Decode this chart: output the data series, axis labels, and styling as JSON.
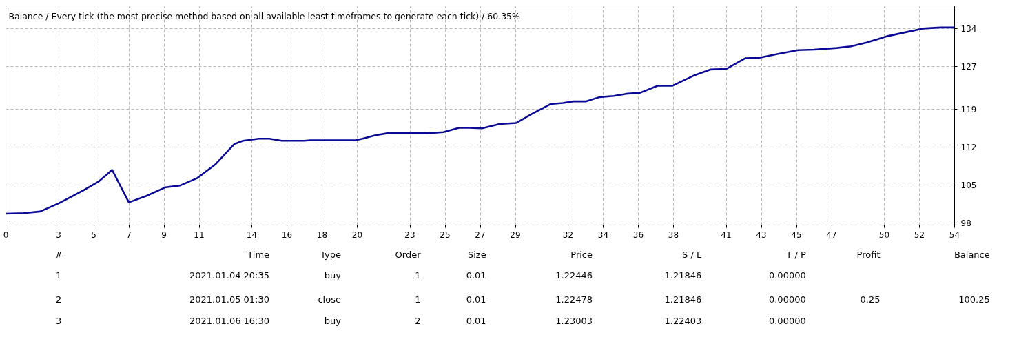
{
  "chart_data": {
    "type": "line",
    "title": "Balance / Every tick (the most precise method based on all available least timeframes to generate each tick) / 60.35%",
    "x": [
      0,
      1.0,
      1.95,
      3.0,
      4.4,
      5.3,
      6.05,
      7.0,
      8.0,
      9.1,
      9.9,
      10.9,
      11.95,
      13.0,
      13.5,
      14.4,
      15.0,
      15.7,
      17.0,
      17.3,
      19.9,
      20.3,
      21.0,
      21.7,
      24.0,
      24.9,
      25.8,
      26.4,
      27.1,
      28.1,
      29.05,
      29.9,
      31.0,
      31.7,
      32.3,
      33.0,
      33.8,
      34.6,
      35.3,
      36.1,
      37.1,
      37.95,
      39.1,
      40.1,
      41.0,
      42.1,
      42.9,
      43.95,
      45.1,
      46.0,
      47.3,
      48.1,
      49.0,
      50.2,
      51.2,
      52.2,
      53.2,
      54
    ],
    "series": [
      {
        "color": "#0a0a96",
        "values": [
          99.7,
          99.8,
          100.1,
          101.6,
          104.0,
          105.7,
          107.8,
          101.8,
          103.0,
          104.6,
          104.9,
          106.3,
          108.9,
          112.6,
          113.2,
          113.6,
          113.6,
          113.2,
          113.2,
          113.3,
          113.3,
          113.6,
          114.2,
          114.6,
          114.6,
          114.8,
          115.6,
          115.6,
          115.5,
          116.3,
          116.5,
          118.1,
          120.0,
          120.2,
          120.5,
          120.5,
          121.3,
          121.5,
          121.9,
          122.1,
          123.4,
          123.4,
          125.2,
          126.4,
          126.5,
          128.5,
          128.6,
          129.3,
          130.0,
          130.1,
          130.4,
          130.7,
          131.4,
          132.6,
          133.3,
          134.0,
          134.2,
          134.2
        ]
      }
    ],
    "xlim": [
      0,
      54
    ],
    "ylim": [
      97.6,
      138.2
    ],
    "xticks": [
      0,
      3,
      5,
      7,
      9,
      11,
      14,
      16,
      18,
      20,
      23,
      25,
      27,
      29,
      32,
      34,
      36,
      38,
      41,
      43,
      45,
      47,
      50,
      52,
      54
    ],
    "yticks": [
      98,
      105,
      112,
      119,
      127,
      134
    ],
    "grid": true,
    "line_style": "solid",
    "annotations": [
      "#",
      "Time",
      "Type",
      "Order",
      "Size",
      "Price",
      "S / L",
      "T / P",
      "Profit",
      "Balance",
      "1",
      "2021.01.04 20:35",
      "buy",
      "1",
      "0.01",
      "1.22446",
      "1.21846",
      "0.00000",
      "2",
      "2021.01.05 01:30",
      "close",
      "1",
      "0.01",
      "1.22478",
      "1.21846",
      "0.00000",
      "0.25",
      "100.25",
      "3",
      "2021.01.06 16:30",
      "buy",
      "2",
      "0.01",
      "1.23003",
      "1.22403",
      "0.00000"
    ]
  }
}
